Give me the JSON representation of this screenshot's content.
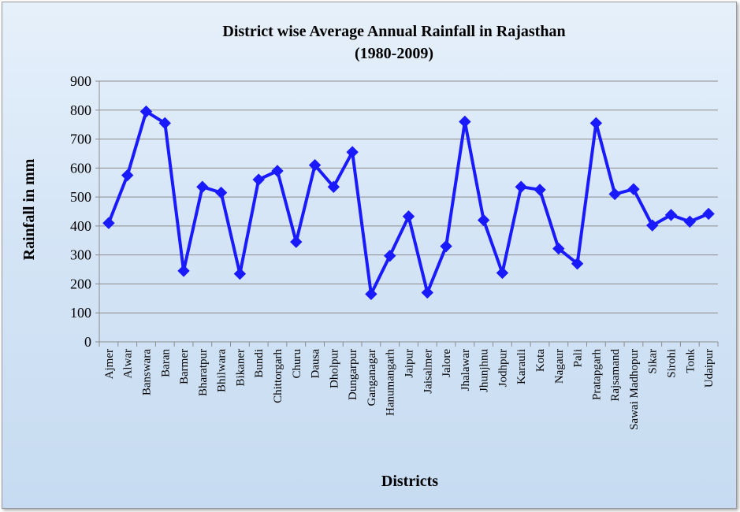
{
  "chart_data": {
    "type": "line",
    "title": "District wise Average Annual Rainfall in Rajasthan",
    "subtitle": "(1980-2009)",
    "xlabel": "Districts",
    "ylabel": "Rainfall in mm",
    "ylim": [
      0,
      900
    ],
    "yticks": [
      "0",
      "100",
      "200",
      "300",
      "400",
      "500",
      "600",
      "700",
      "800",
      "900"
    ],
    "grid": true,
    "legend": "none",
    "series_color": "#1a1aff",
    "categories": [
      "Ajmer",
      "Alwar",
      "Banswara",
      "Baran",
      "Barmer",
      "Bharatpur",
      "Bhilwara",
      "Bikaner",
      "Bundi",
      "Chittorgarh",
      "Churu",
      "Dausa",
      "Dholpur",
      "Dungarpur",
      "Ganganagar",
      "Hanumangarh",
      "Jaipur",
      "Jaisalmer",
      "Jalore",
      "Jhalawar",
      "Jhunjhnu",
      "Jodhpur",
      "Karauli",
      "Kota",
      "Nagaur",
      "Pali",
      "Pratapgarh",
      "Rajsamand",
      "Sawai Madhopur",
      "Sikar",
      "Sirohi",
      "Tonk",
      "Udaipur"
    ],
    "series": [
      {
        "values": [
          410,
          575,
          795,
          755,
          245,
          535,
          515,
          235,
          560,
          590,
          345,
          610,
          535,
          655,
          165,
          297,
          433,
          170,
          330,
          760,
          420,
          238,
          535,
          525,
          322,
          270,
          755,
          510,
          527,
          402,
          438,
          415,
          442
        ]
      }
    ]
  }
}
